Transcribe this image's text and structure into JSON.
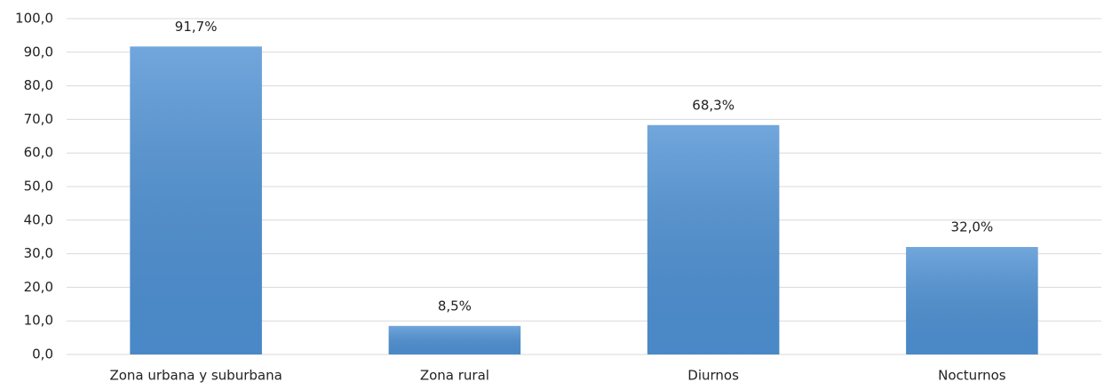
{
  "chart_data": {
    "type": "bar",
    "categories": [
      "Zona urbana y suburbana",
      "Zona rural",
      "Diurnos",
      "Nocturnos"
    ],
    "values": [
      91.7,
      8.5,
      68.3,
      32.0
    ],
    "value_labels": [
      "91,7%",
      "8,5%",
      "68,3%",
      "32,0%"
    ],
    "color": "#4e91d4",
    "ylim": [
      0,
      100
    ],
    "yticks": [
      {
        "value": 0,
        "label": "0,0"
      },
      {
        "value": 10,
        "label": "10,0"
      },
      {
        "value": 20,
        "label": "20,0"
      },
      {
        "value": 30,
        "label": "30,0"
      },
      {
        "value": 40,
        "label": "40,0"
      },
      {
        "value": 50,
        "label": "50,0"
      },
      {
        "value": 60,
        "label": "60,0"
      },
      {
        "value": 70,
        "label": "70,0"
      },
      {
        "value": 80,
        "label": "80,0"
      },
      {
        "value": 90,
        "label": "90,0"
      },
      {
        "value": 100,
        "label": "100,0"
      }
    ],
    "grid": true
  }
}
